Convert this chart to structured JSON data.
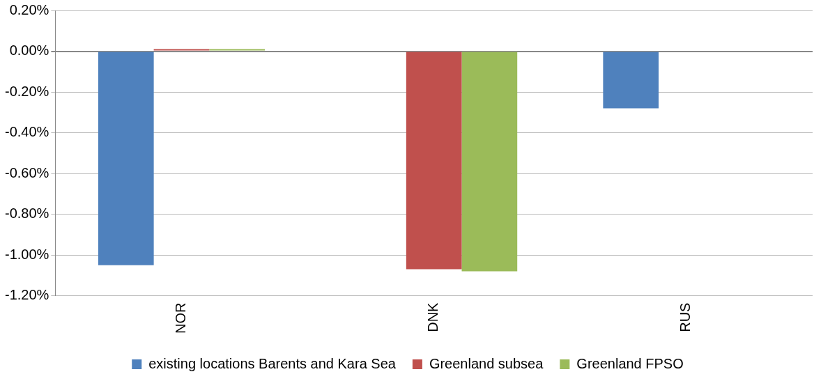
{
  "chart_data": {
    "type": "bar",
    "categories": [
      "NOR",
      "DNK",
      "RUS"
    ],
    "series": [
      {
        "name": "existing locations Barents and Kara Sea",
        "color": "#4f81bd",
        "values": [
          -1.05,
          0,
          -0.28
        ]
      },
      {
        "name": "Greenland subsea",
        "color": "#c0504d",
        "values": [
          0.01,
          -1.07,
          0
        ]
      },
      {
        "name": "Greenland FPSO",
        "color": "#9bbb59",
        "values": [
          0.01,
          -1.08,
          0
        ]
      }
    ],
    "ylim": [
      -1.2,
      0.2
    ],
    "yticks": [
      {
        "value": -1.2,
        "label": "-1.20%"
      },
      {
        "value": -1,
        "label": "-1.00%"
      },
      {
        "value": -0.8,
        "label": "-0.80%"
      },
      {
        "value": -0.6,
        "label": "-0.60%"
      },
      {
        "value": -0.4,
        "label": "-0.40%"
      },
      {
        "value": -0.2,
        "label": "-0.20%"
      },
      {
        "value": 0,
        "label": "0.00%"
      },
      {
        "value": 0.2,
        "label": "0.20%"
      }
    ],
    "grid": "y",
    "legend": "bottom"
  }
}
